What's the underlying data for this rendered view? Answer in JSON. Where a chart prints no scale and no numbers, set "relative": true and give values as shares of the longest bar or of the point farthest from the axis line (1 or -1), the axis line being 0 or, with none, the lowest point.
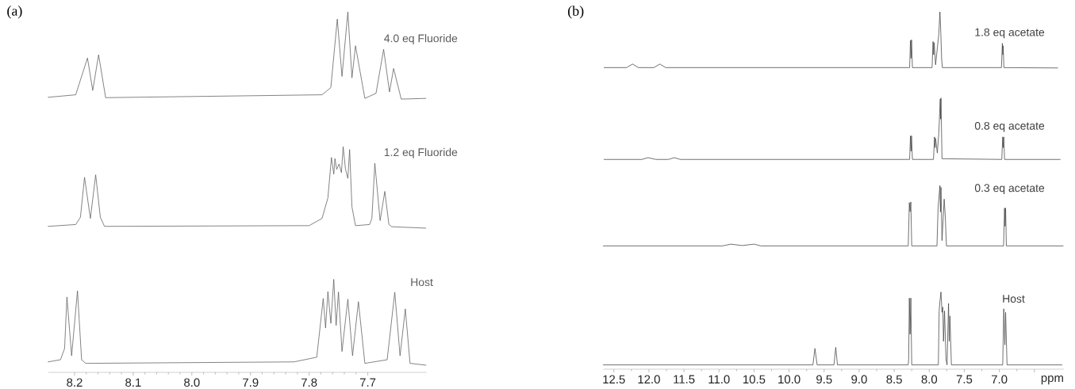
{
  "chart_data": [
    {
      "type": "line",
      "title": "(a)",
      "relative": true,
      "xlim": [
        8.245,
        7.6
      ],
      "xticks": [
        8.2,
        8.1,
        {
          "value": 8,
          "label": "8.0"
        },
        7.9,
        7.8,
        7.7
      ],
      "series": [
        {
          "name": "4.0 eq Fluoride",
          "color": "#5a5a5a",
          "x": [
            8.245,
            8.198,
            8.178,
            8.169,
            8.159,
            8.147,
            7.778,
            7.763,
            7.752,
            7.744,
            7.734,
            7.727,
            7.721,
            7.705,
            7.686,
            7.673,
            7.663,
            7.656,
            7.643,
            7.601
          ],
          "values": [
            0.763,
            0.77,
            0.872,
            0.782,
            0.881,
            0.762,
            0.77,
            0.79,
            0.98,
            0.821,
            1.0,
            0.817,
            0.906,
            0.76,
            0.774,
            0.896,
            0.778,
            0.843,
            0.758,
            0.76
          ]
        },
        {
          "name": "1.2 eq Fluoride",
          "color": "#5a5a5a",
          "x": [
            8.245,
            8.198,
            8.19,
            8.183,
            8.173,
            8.164,
            8.156,
            8.149,
            7.8,
            7.778,
            7.768,
            7.762,
            7.758,
            7.756,
            7.753,
            7.749,
            7.745,
            7.742,
            7.738,
            7.734,
            7.731,
            7.727,
            7.721,
            7.697,
            7.693,
            7.688,
            7.679,
            7.671,
            7.664,
            7.659,
            7.601
          ],
          "values": [
            0.405,
            0.41,
            0.43,
            0.541,
            0.427,
            0.548,
            0.43,
            0.405,
            0.407,
            0.427,
            0.484,
            0.596,
            0.55,
            0.593,
            0.563,
            0.578,
            0.554,
            0.626,
            0.563,
            0.538,
            0.618,
            0.459,
            0.407,
            0.41,
            0.427,
            0.58,
            0.421,
            0.502,
            0.41,
            0.404,
            0.4
          ]
        },
        {
          "name": "Host",
          "color": "#5a5a5a",
          "x": [
            8.245,
            8.224,
            8.217,
            8.213,
            8.205,
            8.195,
            8.188,
            8.181,
            7.826,
            7.787,
            7.776,
            7.772,
            7.768,
            7.763,
            7.758,
            7.754,
            7.75,
            7.744,
            7.734,
            7.726,
            7.716,
            7.705,
            7.667,
            7.654,
            7.645,
            7.636,
            7.628,
            7.601
          ],
          "values": [
            0.029,
            0.035,
            0.066,
            0.209,
            0.046,
            0.226,
            0.035,
            0.025,
            0.029,
            0.042,
            0.205,
            0.123,
            0.224,
            0.136,
            0.258,
            0.13,
            0.223,
            0.058,
            0.203,
            0.046,
            0.196,
            0.025,
            0.035,
            0.222,
            0.046,
            0.176,
            0.025,
            0.02
          ]
        }
      ]
    },
    {
      "type": "line",
      "title": "(b)",
      "xlabel": "ppm",
      "relative": true,
      "xlim": [
        12.65,
        6.08
      ],
      "xticks": [
        12.5,
        {
          "value": 12,
          "label": "12.0"
        },
        11.5,
        {
          "value": 11,
          "label": "11.0"
        },
        10.5,
        {
          "value": 10,
          "label": "10.0"
        },
        9.5,
        {
          "value": 9,
          "label": "9.0"
        },
        8.5,
        {
          "value": 8,
          "label": "8.0"
        },
        7.5,
        {
          "value": 7,
          "label": "7.0"
        },
        {
          "value": 6.5,
          "label": null
        }
      ],
      "series": [
        {
          "name": "1.8 eq acetate",
          "color": "#404040",
          "x": [
            12.64,
            12.32,
            12.234,
            12.15,
            11.93,
            11.844,
            11.76,
            8.28,
            8.268,
            8.26,
            8.253,
            8.24,
            7.96,
            7.946,
            7.938,
            7.93,
            7.91,
            7.864,
            7.848,
            7.838,
            7.823,
            7.813,
            6.97,
            6.957,
            6.95,
            6.946,
            6.935,
            6.168
          ],
          "values": [
            0.844,
            0.844,
            0.854,
            0.844,
            0.844,
            0.854,
            0.844,
            0.844,
            0.92,
            0.87,
            0.922,
            0.844,
            0.844,
            0.917,
            0.88,
            0.914,
            0.852,
            0.937,
            1.0,
            0.958,
            0.867,
            0.844,
            0.844,
            0.912,
            0.88,
            0.905,
            0.844,
            0.843
          ]
        },
        {
          "name": "0.8 eq acetate",
          "color": "#404040",
          "x": [
            12.64,
            12.1,
            12.013,
            11.9,
            11.72,
            11.639,
            11.55,
            8.28,
            8.268,
            8.26,
            8.253,
            8.24,
            7.94,
            7.925,
            7.917,
            7.91,
            7.885,
            7.864,
            7.843,
            7.838,
            7.833,
            7.818,
            6.965,
            6.952,
            6.945,
            6.937,
            6.925,
            6.132
          ],
          "values": [
            0.587,
            0.587,
            0.592,
            0.587,
            0.587,
            0.592,
            0.587,
            0.587,
            0.653,
            0.61,
            0.653,
            0.587,
            0.587,
            0.65,
            0.62,
            0.646,
            0.605,
            0.66,
            0.756,
            0.7,
            0.759,
            0.589,
            0.587,
            0.65,
            0.62,
            0.65,
            0.587,
            0.587
          ]
        },
        {
          "name": "0.3 eq acetate",
          "color": "#404040",
          "x": [
            12.65,
            10.95,
            10.83,
            10.67,
            10.5,
            10.4,
            8.3,
            8.284,
            8.274,
            8.263,
            8.25,
            7.89,
            7.874,
            7.848,
            7.84,
            7.833,
            7.818,
            7.787,
            7.771,
            7.755,
            6.94,
            6.926,
            6.918,
            6.911,
            6.9,
            6.09
          ],
          "values": [
            0.345,
            0.345,
            0.35,
            0.346,
            0.35,
            0.345,
            0.345,
            0.466,
            0.441,
            0.468,
            0.345,
            0.345,
            0.451,
            0.514,
            0.44,
            0.509,
            0.36,
            0.476,
            0.426,
            0.345,
            0.345,
            0.451,
            0.4,
            0.451,
            0.345,
            0.345
          ]
        },
        {
          "name": "Host",
          "color": "#404040",
          "x": [
            12.65,
            9.66,
            9.631,
            9.6,
            9.36,
            9.334,
            9.31,
            8.3,
            8.294,
            8.284,
            8.274,
            8.263,
            8.25,
            7.87,
            7.859,
            7.848,
            7.833,
            7.818,
            7.807,
            7.797,
            7.782,
            7.761,
            7.746,
            7.725,
            7.715,
            7.705,
            7.684,
            6.96,
            6.952,
            6.937,
            6.921,
            6.911,
            6.89,
            6.107
          ],
          "values": [
            0.012,
            0.012,
            0.058,
            0.012,
            0.012,
            0.061,
            0.012,
            0.012,
            0.027,
            0.199,
            0.098,
            0.199,
            0.012,
            0.012,
            0.163,
            0.189,
            0.216,
            0.159,
            0.174,
            0.078,
            0.163,
            0.027,
            0.012,
            0.184,
            0.078,
            0.149,
            0.012,
            0.012,
            0.012,
            0.169,
            0.068,
            0.159,
            0.012,
            0.012
          ]
        }
      ]
    }
  ]
}
